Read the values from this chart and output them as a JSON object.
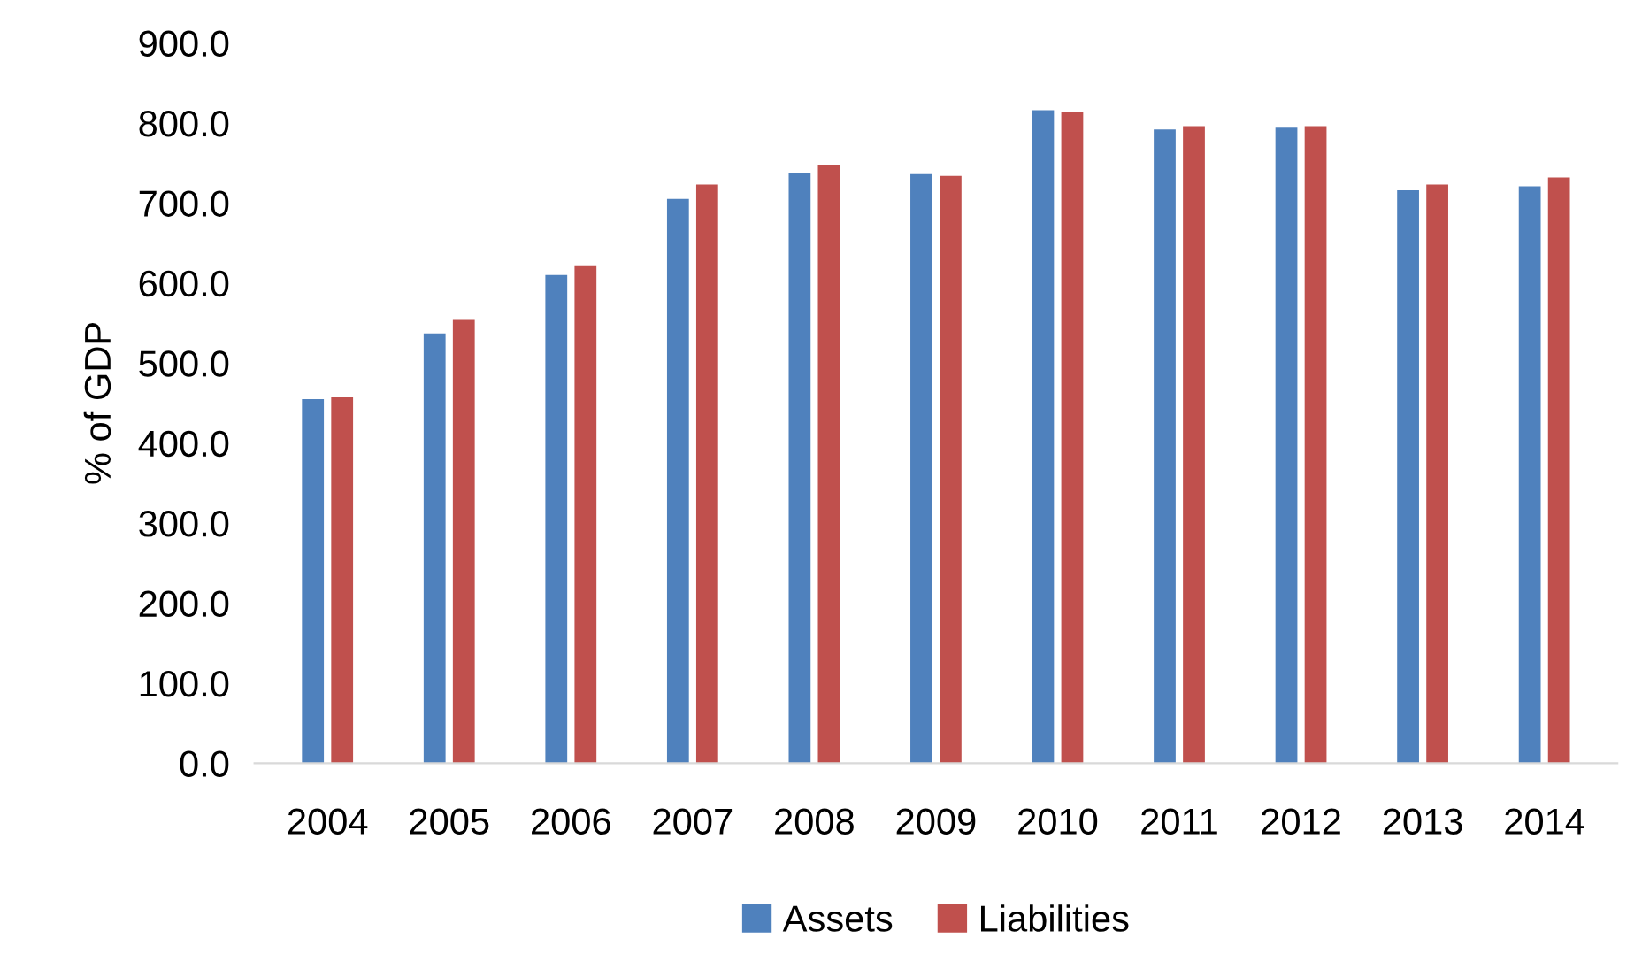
{
  "chart_data": {
    "type": "bar",
    "ylabel": "% of GDP",
    "categories": [
      "2004",
      "2005",
      "2006",
      "2007",
      "2008",
      "2009",
      "2010",
      "2011",
      "2012",
      "2013",
      "2014"
    ],
    "series": [
      {
        "name": "Assets",
        "color": "#4f81bd",
        "values": [
          455,
          537,
          610,
          705,
          738,
          736,
          816,
          792,
          794,
          716,
          721
        ]
      },
      {
        "name": "Liabilities",
        "color": "#c0504d",
        "values": [
          457,
          554,
          621,
          723,
          747,
          734,
          814,
          796,
          796,
          723,
          732
        ]
      }
    ],
    "ylim": [
      0,
      900
    ],
    "yticks": [
      {
        "value": 0,
        "label": "0.0"
      },
      {
        "value": 100,
        "label": "100.0"
      },
      {
        "value": 200,
        "label": "200.0"
      },
      {
        "value": 300,
        "label": "300.0"
      },
      {
        "value": 400,
        "label": "400.0"
      },
      {
        "value": 500,
        "label": "500.0"
      },
      {
        "value": 600,
        "label": "600.0"
      },
      {
        "value": 700,
        "label": "700.0"
      },
      {
        "value": 800,
        "label": "800.0"
      },
      {
        "value": 900,
        "label": "900.0"
      }
    ],
    "grid": false,
    "legend": "bottom"
  }
}
